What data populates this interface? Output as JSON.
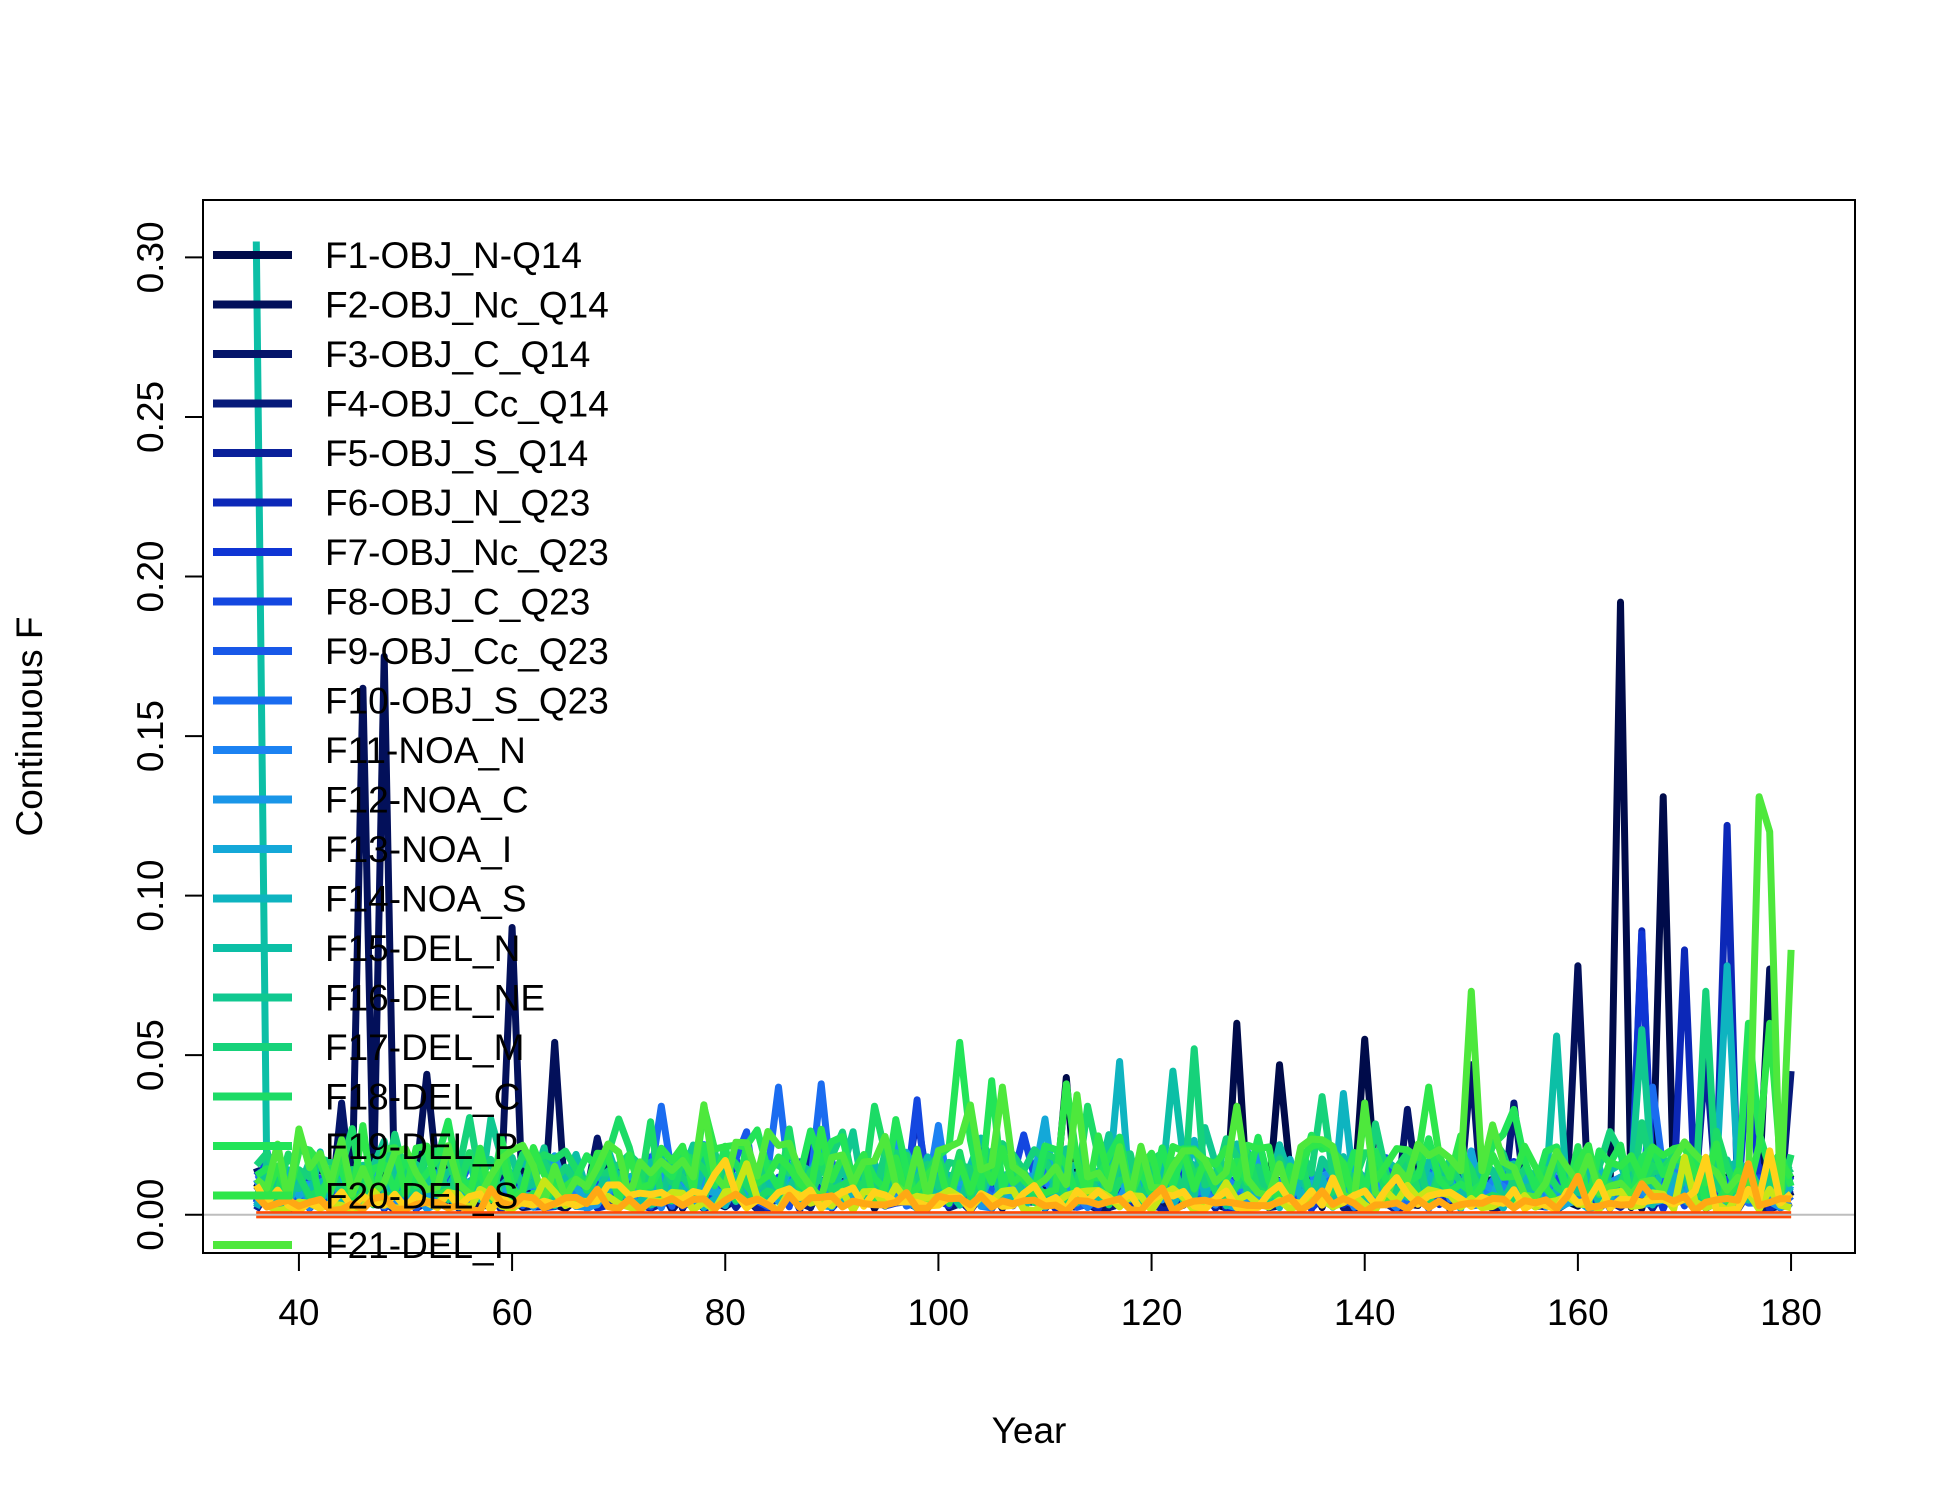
{
  "chart_data": {
    "type": "line",
    "title": "",
    "xlabel": "Year",
    "ylabel": "Continuous F",
    "xlim": [
      31,
      186
    ],
    "ylim": [
      -0.012,
      0.318
    ],
    "xticks": [
      40,
      60,
      80,
      100,
      120,
      140,
      160,
      180
    ],
    "yticks": [
      0.0,
      0.05,
      0.1,
      0.15,
      0.2,
      0.25,
      0.3
    ],
    "ytick_labels": [
      "0.00",
      "0.05",
      "0.10",
      "0.15",
      "0.20",
      "0.25",
      "0.30"
    ],
    "reference_line": {
      "y": 0,
      "color": "#bebebe"
    },
    "grid": false,
    "legend_position": "top-left",
    "x_range": [
      36,
      180
    ],
    "series": [
      {
        "name": "F1-OBJ_N-Q14",
        "color": "#000b4a",
        "peaks": [
          [
            164,
            0.192
          ],
          [
            168,
            0.131
          ],
          [
            128,
            0.06
          ],
          [
            132,
            0.047
          ],
          [
            112,
            0.043
          ],
          [
            140,
            0.055
          ]
        ],
        "base": 0.006
      },
      {
        "name": "F2-OBJ_Nc_Q14",
        "color": "#03105a",
        "peaks": [
          [
            48,
            0.175
          ],
          [
            46,
            0.165
          ],
          [
            60,
            0.09
          ],
          [
            64,
            0.054
          ],
          [
            52,
            0.044
          ],
          [
            160,
            0.078
          ],
          [
            178,
            0.077
          ]
        ],
        "base": 0.006
      },
      {
        "name": "F3-OBJ_C_Q14",
        "color": "#05156a",
        "peaks": [
          [
            44,
            0.035
          ],
          [
            68,
            0.024
          ],
          [
            144,
            0.033
          ],
          [
            150,
            0.047
          ]
        ],
        "base": 0.005
      },
      {
        "name": "F4-OBJ_Cc_Q14",
        "color": "#071a7a",
        "peaks": [
          [
            154,
            0.035
          ],
          [
            180,
            0.045
          ]
        ],
        "base": 0.005
      },
      {
        "name": "F5-OBJ_S_Q14",
        "color": "#0a209a",
        "peaks": [
          [
            172,
            0.05
          ],
          [
            88,
            0.025
          ]
        ],
        "base": 0.004
      },
      {
        "name": "F6-OBJ_N_Q23",
        "color": "#0c28b8",
        "peaks": [
          [
            174,
            0.122
          ],
          [
            170,
            0.083
          ],
          [
            98,
            0.031
          ],
          [
            166,
            0.089
          ]
        ],
        "base": 0.005
      },
      {
        "name": "F7-OBJ_Nc_Q23",
        "color": "#0f35d4",
        "peaks": [
          [
            166,
            0.088
          ],
          [
            176,
            0.05
          ]
        ],
        "base": 0.006
      },
      {
        "name": "F8-OBJ_C_Q23",
        "color": "#1447e0",
        "peaks": [
          [
            98,
            0.036
          ],
          [
            108,
            0.025
          ]
        ],
        "base": 0.006
      },
      {
        "name": "F9-OBJ_Cc_Q23",
        "color": "#1858e8",
        "peaks": [
          [
            82,
            0.026
          ],
          [
            104,
            0.02
          ]
        ],
        "base": 0.006
      },
      {
        "name": "F10-OBJ_S_Q23",
        "color": "#1a6cf0",
        "peaks": [
          [
            74,
            0.034
          ],
          [
            85,
            0.04
          ],
          [
            89,
            0.041
          ],
          [
            167,
            0.04
          ]
        ],
        "base": 0.007
      },
      {
        "name": "F11-NOA_N",
        "color": "#1c82f2",
        "peaks": [
          [
            78,
            0.022
          ],
          [
            100,
            0.028
          ]
        ],
        "base": 0.006
      },
      {
        "name": "F12-NOA_C",
        "color": "#1a96e8",
        "peaks": [
          [
            96,
            0.025
          ],
          [
            130,
            0.02
          ]
        ],
        "base": 0.006
      },
      {
        "name": "F13-NOA_I",
        "color": "#14a8d8",
        "peaks": [
          [
            110,
            0.03
          ],
          [
            150,
            0.02
          ]
        ],
        "base": 0.006
      },
      {
        "name": "F14-NOA_S",
        "color": "#0eb4c0",
        "peaks": [
          [
            117,
            0.048
          ],
          [
            138,
            0.038
          ],
          [
            174,
            0.078
          ]
        ],
        "base": 0.007
      },
      {
        "name": "F15-DEL_N",
        "color": "#0cbfa6",
        "peaks": [
          [
            36,
            0.305
          ],
          [
            122,
            0.045
          ],
          [
            158,
            0.056
          ]
        ],
        "base": 0.009
      },
      {
        "name": "F16-DEL_NE",
        "color": "#10c890",
        "peaks": [
          [
            58,
            0.03
          ],
          [
            92,
            0.026
          ],
          [
            166,
            0.058
          ]
        ],
        "base": 0.009
      },
      {
        "name": "F17-DEL_M",
        "color": "#16d27a",
        "peaks": [
          [
            124,
            0.052
          ],
          [
            136,
            0.037
          ],
          [
            172,
            0.07
          ]
        ],
        "base": 0.01
      },
      {
        "name": "F18-DEL_C",
        "color": "#1cdb66",
        "peaks": [
          [
            70,
            0.03
          ],
          [
            94,
            0.034
          ],
          [
            114,
            0.034
          ]
        ],
        "base": 0.01
      },
      {
        "name": "F19-DEL_P",
        "color": "#22e458",
        "peaks": [
          [
            102,
            0.054
          ],
          [
            105,
            0.042
          ],
          [
            154,
            0.033
          ],
          [
            176,
            0.06
          ]
        ],
        "base": 0.011
      },
      {
        "name": "F20-DEL_S",
        "color": "#2ee64a",
        "peaks": [
          [
            112,
            0.041
          ],
          [
            146,
            0.04
          ],
          [
            178,
            0.06
          ]
        ],
        "base": 0.011
      },
      {
        "name": "F21-DEL_I",
        "color": "#4ee83c",
        "peaks": [
          [
            150,
            0.07
          ],
          [
            177,
            0.131
          ],
          [
            178,
            0.12
          ],
          [
            180,
            0.083
          ],
          [
            106,
            0.04
          ],
          [
            140,
            0.035
          ]
        ],
        "base": 0.012
      },
      {
        "name": "",
        "color": "#c8e616",
        "peaks": [
          [
            82,
            0.016
          ],
          [
            170,
            0.018
          ]
        ],
        "base": 0.004,
        "unlabeled": true
      },
      {
        "name": "",
        "color": "#ffd21a",
        "peaks": [
          [
            80,
            0.017
          ],
          [
            178,
            0.02
          ],
          [
            172,
            0.018
          ]
        ],
        "base": 0.004,
        "unlabeled": true
      },
      {
        "name": "",
        "color": "#ffa814",
        "peaks": [
          [
            160,
            0.012
          ],
          [
            176,
            0.016
          ]
        ],
        "base": 0.003,
        "unlabeled": true
      },
      {
        "name": "",
        "color": "#ff7a10",
        "peaks": [],
        "base": 0.0,
        "unlabeled": true
      },
      {
        "name": "",
        "color": "#ff4a0a",
        "peaks": [],
        "base": 0.0,
        "unlabeled": true
      }
    ]
  }
}
